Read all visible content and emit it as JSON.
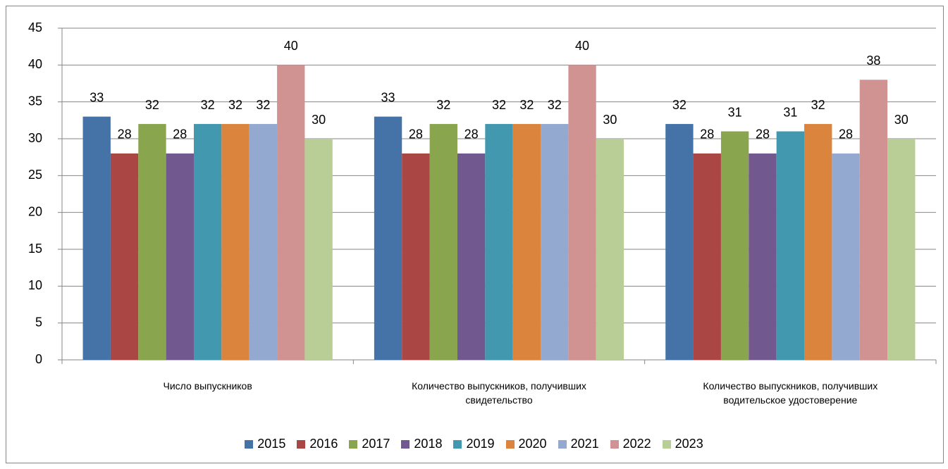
{
  "chart_data": {
    "type": "bar",
    "categories": [
      "Число выпускников",
      "Количество выпускников, получивших свидетельство",
      "Количество выпускников, получивших водительское удостоверение"
    ],
    "series": [
      {
        "name": "2015",
        "color": "#4572a7",
        "values": [
          33,
          33,
          32
        ]
      },
      {
        "name": "2016",
        "color": "#aa4643",
        "values": [
          28,
          28,
          28
        ]
      },
      {
        "name": "2017",
        "color": "#89a54e",
        "values": [
          32,
          32,
          31
        ]
      },
      {
        "name": "2018",
        "color": "#71588f",
        "values": [
          28,
          28,
          28
        ]
      },
      {
        "name": "2019",
        "color": "#4198af",
        "values": [
          32,
          32,
          31
        ]
      },
      {
        "name": "2020",
        "color": "#db843d",
        "values": [
          32,
          32,
          32
        ]
      },
      {
        "name": "2021",
        "color": "#93a9cf",
        "values": [
          32,
          32,
          28
        ]
      },
      {
        "name": "2022",
        "color": "#d19392",
        "values": [
          40,
          40,
          38
        ]
      },
      {
        "name": "2023",
        "color": "#b9cd96",
        "values": [
          30,
          30,
          30
        ]
      }
    ],
    "ylim": [
      0,
      45
    ],
    "yticks": [
      0,
      5,
      10,
      15,
      20,
      25,
      30,
      35,
      40,
      45
    ],
    "grid": true,
    "legend": "bottom"
  }
}
